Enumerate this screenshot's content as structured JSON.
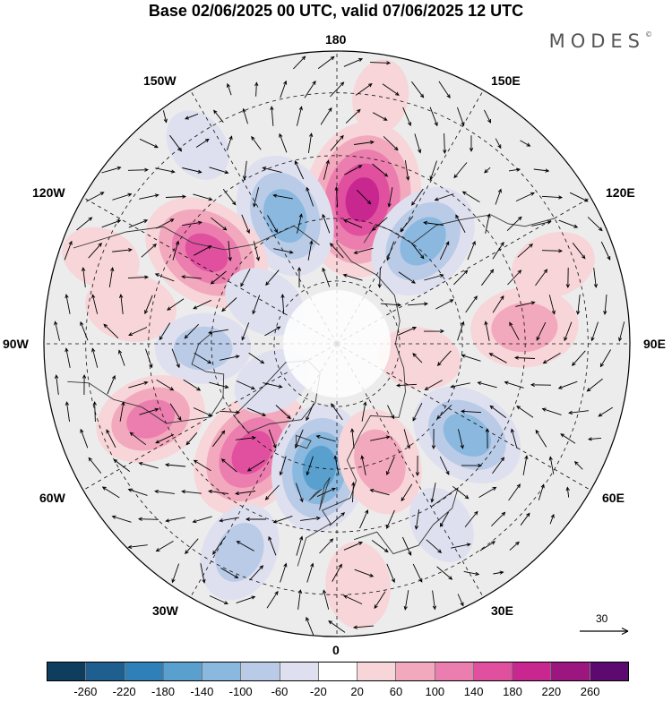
{
  "title": "Base 02/06/2025 00 UTC, valid 07/06/2025 12 UTC",
  "brand": "MODES",
  "brand_mark": "©",
  "longitude_labels": {
    "top": "180",
    "top_left": "150W",
    "top_right": "150E",
    "upper_left": "120W",
    "upper_right": "120E",
    "left": "90W",
    "right": "90E",
    "lower_left": "60W",
    "lower_right": "60E",
    "bottom_left": "30W",
    "bottom_right": "30E",
    "bottom": "0"
  },
  "vector_scale": {
    "value": "30"
  },
  "colorbar": {
    "colors": [
      "#0f3d5e",
      "#1f5f8f",
      "#2f80b8",
      "#5aa0cf",
      "#8ab8de",
      "#b9cbe6",
      "#dfe0ef",
      "#ffffff",
      "#f7d5d8",
      "#f2a9bd",
      "#eb7eae",
      "#e0509f",
      "#c82790",
      "#9b167f",
      "#5c0a70"
    ],
    "ticks": [
      "-260",
      "-220",
      "-180",
      "-140",
      "-100",
      "-60",
      "-20",
      "20",
      "60",
      "100",
      "140",
      "180",
      "220",
      "260"
    ]
  },
  "anomalies": [
    {
      "lon": 170,
      "lat": 55,
      "value": 230
    },
    {
      "lon": -158,
      "lat": 57,
      "value": -150
    },
    {
      "lon": -125,
      "lat": 52,
      "value": 170
    },
    {
      "lon": 140,
      "lat": 58,
      "value": -140
    },
    {
      "lon": -100,
      "lat": 40,
      "value": 70
    },
    {
      "lon": -88,
      "lat": 58,
      "value": -80
    },
    {
      "lon": -68,
      "lat": 42,
      "value": 120
    },
    {
      "lon": -38,
      "lat": 57,
      "value": 180
    },
    {
      "lon": -8,
      "lat": 60,
      "value": -160
    },
    {
      "lon": -25,
      "lat": 35,
      "value": -90
    },
    {
      "lon": 20,
      "lat": 60,
      "value": 110
    },
    {
      "lon": 55,
      "lat": 52,
      "value": -130
    },
    {
      "lon": 95,
      "lat": 45,
      "value": 110
    },
    {
      "lon": 110,
      "lat": 35,
      "value": 55
    },
    {
      "lon": 5,
      "lat": 32,
      "value": 60
    },
    {
      "lon": 30,
      "lat": 40,
      "value": -40
    },
    {
      "lon": -145,
      "lat": 32,
      "value": -30
    },
    {
      "lon": -110,
      "lat": 30,
      "value": 40
    },
    {
      "lon": -120,
      "lat": 70,
      "value": -50
    },
    {
      "lon": 80,
      "lat": 70,
      "value": 50
    },
    {
      "lon": 170,
      "lat": 30,
      "value": 30
    },
    {
      "lon": -60,
      "lat": 72,
      "value": -40
    }
  ]
}
